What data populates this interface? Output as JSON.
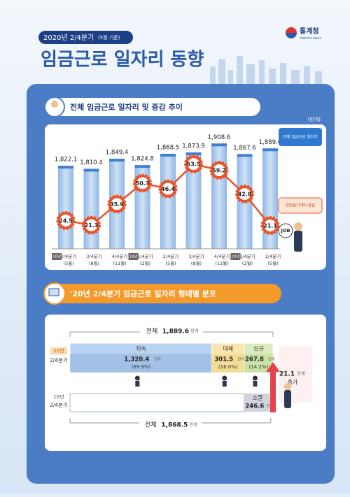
{
  "header": {
    "badge": "2020년 2/4분기",
    "badge_note": "(5월 기준)",
    "title": "임금근로 일자리 동향",
    "logo": "통계청",
    "logo_sub": "Statistics Korea"
  },
  "chart_data": {
    "type": "bar",
    "title": "전체 임금근로 일자리 및 증감 추이",
    "unit": "(만개)",
    "categories": [
      "2/4분기",
      "3/4분기",
      "4/4분기",
      "1/4분기",
      "2/4분기",
      "3/4분기",
      "4/4분기",
      "1/4분기",
      "2/4분기"
    ],
    "category_notes": [
      "(5월)",
      "(8월)",
      "(11월)",
      "(2월)",
      "(5월)",
      "(8월)",
      "(11월)",
      "(2월)",
      "(5월)"
    ],
    "year_labels": [
      "18년",
      null,
      null,
      "19년",
      null,
      null,
      null,
      "20년",
      null
    ],
    "series": [
      {
        "name": "전체 임금근로 일자리",
        "color": "#a9c9ec",
        "values": [
          1822.1,
          1810.4,
          1849.4,
          1824.8,
          1868.5,
          1873.9,
          1908.6,
          1867.6,
          1889.6
        ],
        "value_labels": [
          "1,822.1",
          "1,810.4",
          "1,849.4",
          "1,824.8",
          "1,868.5",
          "1,873.9",
          "1,908.6",
          "1,867.6",
          "1,889.6"
        ]
      },
      {
        "name": "전년동기대비 증감",
        "color": "#e8532a",
        "axis": "y2",
        "values": [
          24.5,
          21.3,
          35.9,
          50.3,
          46.4,
          63.5,
          59.2,
          42.8,
          21.1
        ]
      }
    ],
    "ylim": [
      1500,
      1950
    ],
    "y2lim": [
      5,
      85
    ],
    "annotation": "JOB"
  },
  "distribution": {
    "title": "'20년 2/4분기 임금근로 일자리 형태별 분포",
    "total_2020": {
      "label": "전체",
      "value": 1889.6,
      "value_label": "1,889.6",
      "unit": "만개"
    },
    "total_2019": {
      "label": "전체",
      "value": 1868.5,
      "value_label": "1,868.5",
      "unit": "만개"
    },
    "row_2020": {
      "year": "20년",
      "quarter": "2/4분기"
    },
    "row_2019": {
      "year": "19년",
      "quarter": "2/4분기"
    },
    "segments": [
      {
        "name": "지속",
        "value": 1320.4,
        "value_label": "1,320.4",
        "unit": "만개",
        "share": "(69.9%)",
        "color": "#b9d2ef",
        "dark": "#8db0dd"
      },
      {
        "name": "대체",
        "value": 301.5,
        "value_label": "301.5",
        "unit": "만개",
        "share": "(16.0%)",
        "color": "#f8e6ae",
        "dark": "#eed17a"
      },
      {
        "name": "신규",
        "value": 267.8,
        "value_label": "267.8",
        "unit": "만개",
        "share": "(14.2%)",
        "color": "#dcebbf",
        "dark": "#bcd88c"
      }
    ],
    "extinct": {
      "name": "소멸",
      "value": 246.6,
      "value_label": "246.6",
      "unit": "만개",
      "color": "#d3d3de"
    },
    "change": {
      "value_label": "21.1",
      "unit": "만개",
      "label": "증가"
    }
  }
}
